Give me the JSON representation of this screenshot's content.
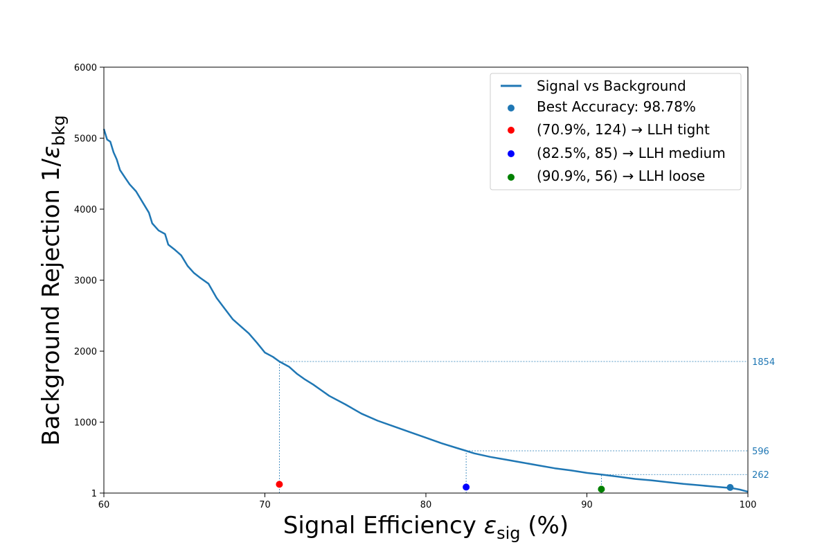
{
  "chart_data": {
    "type": "line",
    "xlabel": {
      "main": "Signal Efficiency ",
      "symbol": "ε",
      "subscript": "sig",
      "suffix": " (%)"
    },
    "ylabel": {
      "main": "Background Rejection 1/",
      "symbol": "ε",
      "subscript": "bkg"
    },
    "xlim": [
      60,
      100
    ],
    "ylim": [
      1,
      6000
    ],
    "x_ticks": [
      "60",
      "70",
      "80",
      "90",
      "100"
    ],
    "y_ticks": [
      "1",
      "1000",
      "2000",
      "3000",
      "4000",
      "5000",
      "6000"
    ],
    "grid": false,
    "legend_position": "top-right",
    "series": [
      {
        "name": "Signal vs Background",
        "color": "#1f77b4",
        "x": [
          60.0,
          60.2,
          60.4,
          60.6,
          60.8,
          61.0,
          61.3,
          61.6,
          62.0,
          62.4,
          62.8,
          63.0,
          63.4,
          63.8,
          64.0,
          64.4,
          64.8,
          65.2,
          65.6,
          66.0,
          66.5,
          67.0,
          67.5,
          68.0,
          68.5,
          69.0,
          69.5,
          70.0,
          70.5,
          70.9,
          71.5,
          72.0,
          72.5,
          73.0,
          73.5,
          74.0,
          75.0,
          76.0,
          77.0,
          78.0,
          79.0,
          80.0,
          81.0,
          82.0,
          82.5,
          83.0,
          84.0,
          85.0,
          86.0,
          87.0,
          88.0,
          89.0,
          90.0,
          90.9,
          92.0,
          93.0,
          94.0,
          95.0,
          96.0,
          97.0,
          98.0,
          99.0,
          99.5,
          100.0
        ],
        "y": [
          5130,
          4980,
          4950,
          4800,
          4700,
          4550,
          4450,
          4350,
          4250,
          4100,
          3950,
          3800,
          3700,
          3650,
          3500,
          3430,
          3350,
          3200,
          3100,
          3030,
          2950,
          2750,
          2600,
          2450,
          2350,
          2250,
          2120,
          1980,
          1920,
          1854,
          1780,
          1680,
          1600,
          1530,
          1450,
          1370,
          1250,
          1120,
          1020,
          940,
          860,
          780,
          700,
          630,
          596,
          560,
          510,
          470,
          430,
          390,
          350,
          320,
          285,
          262,
          230,
          200,
          180,
          155,
          130,
          110,
          90,
          70,
          50,
          20
        ]
      }
    ],
    "markers": [
      {
        "name": "Best Accuracy",
        "legend_label": "Best Accuracy:  98.78%",
        "x": 98.9,
        "y": 80,
        "color": "#1f77b4"
      },
      {
        "name": "LLH tight",
        "legend_label": "(70.9%, 124)",
        "legend_arrow": "→",
        "legend_tag": "LLH tight",
        "x": 70.9,
        "y": 124,
        "color": "#ff0000",
        "ref_y": 1854,
        "ref_label": "1854"
      },
      {
        "name": "LLH medium",
        "legend_label": "(82.5%,  85)",
        "legend_arrow": "→",
        "legend_tag": "LLH medium",
        "x": 82.5,
        "y": 85,
        "color": "#0000ff",
        "ref_y": 596,
        "ref_label": "596"
      },
      {
        "name": "LLH loose",
        "legend_label": "(90.9%,  56)",
        "legend_arrow": "→",
        "legend_tag": "LLH loose",
        "x": 90.9,
        "y": 56,
        "color": "#008000",
        "ref_y": 262,
        "ref_label": "262"
      }
    ]
  }
}
